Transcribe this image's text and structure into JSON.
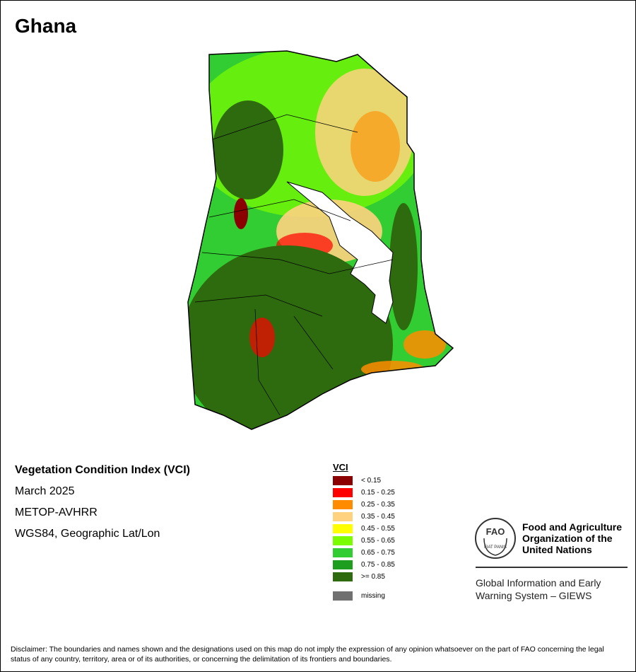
{
  "title": "Ghana",
  "info": {
    "heading": "Vegetation Condition Index (VCI)",
    "date": "March 2025",
    "sensor": "METOP-AVHRR",
    "projection": "WGS84, Geographic Lat/Lon"
  },
  "legend": {
    "title": "VCI",
    "classes": [
      {
        "label": "< 0.15",
        "color": "#8b0000"
      },
      {
        "label": "0.15 - 0.25",
        "color": "#ff0000"
      },
      {
        "label": "0.25 - 0.35",
        "color": "#ff8c00"
      },
      {
        "label": "0.35 - 0.45",
        "color": "#ffd27f"
      },
      {
        "label": "0.45 - 0.55",
        "color": "#ffff00"
      },
      {
        "label": "0.55 - 0.65",
        "color": "#7cfc00"
      },
      {
        "label": "0.65 - 0.75",
        "color": "#32cd32"
      },
      {
        "label": "0.75 - 0.85",
        "color": "#1e9e1e"
      },
      {
        "label": ">= 0.85",
        "color": "#2e6b0e"
      }
    ],
    "missing": {
      "label": "missing",
      "color": "#707070"
    }
  },
  "fao": {
    "name_line1": "Food and Agriculture",
    "name_line2": "Organization of the",
    "name_line3": "United Nations",
    "emblem_text": "FAO",
    "emblem_motto": "FIAT PANIS"
  },
  "giews": {
    "line1": "Global Information and Early",
    "line2": "Warning System – GIEWS"
  },
  "disclaimer": "Disclaimer: The boundaries and names shown and the designations used on this map do not imply the expression of any opinion whatsoever on the part of FAO concerning the legal status of any country, territory, area or of its authorities, or concerning the delimitation of its frontiers and boundaries."
}
